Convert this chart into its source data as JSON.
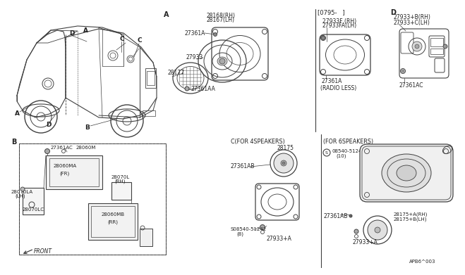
{
  "bg_color": "#ffffff",
  "line_color": "#404040",
  "text_color": "#222222",
  "fig_width": 6.4,
  "fig_height": 3.72,
  "footer": "APB6^003",
  "sec_a_parts": [
    "28168(RH)",
    "28167(LH)",
    "27361A",
    "27933",
    "28177",
    "27361AA"
  ],
  "sec_b_parts": [
    "27361AC",
    "28060M",
    "28060MA",
    "(FR)",
    "28070L",
    "(RH)",
    "28070LA",
    "(LH)",
    "28070LC",
    "28060MB",
    "(RR)",
    "FRONT"
  ],
  "sec_c_parts": [
    "C(FOR 4SPEAKERS)",
    "28175",
    "27361AB",
    "S08540-51242",
    "(8)",
    "27933+A"
  ],
  "sec_d_parts": [
    "D",
    "27933+B(RH)",
    "27933+C(LH)",
    "27361AC"
  ],
  "bracket_note": "[0795-   ]",
  "radio_less_parts": [
    "27933F (RH)",
    "27933FA(LH)",
    "27361A",
    "(RADIO LESS)"
  ],
  "for6_parts": [
    "(FOR 6SPEAKERS)",
    "S08540-51242",
    "(10)",
    "27361AB",
    "28175+A(RH)",
    "28175+B(LH)",
    "27933+A"
  ]
}
